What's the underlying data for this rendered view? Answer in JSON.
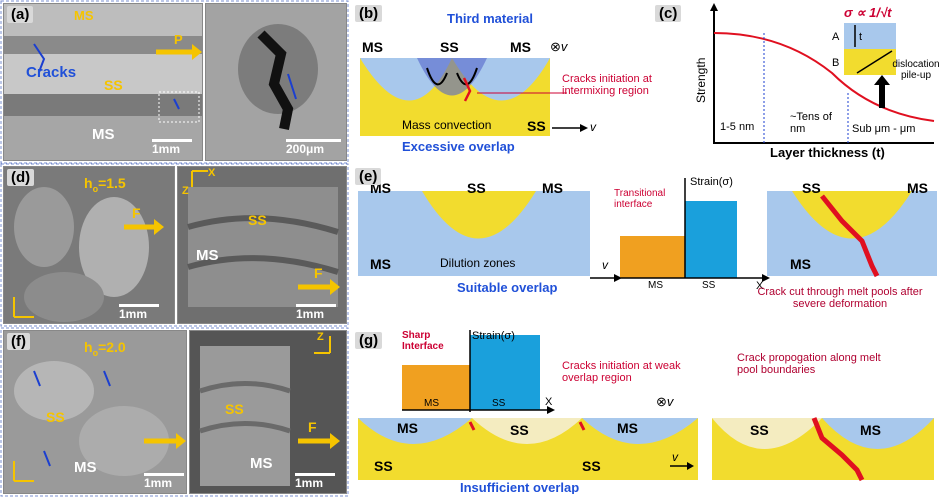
{
  "panels": {
    "a": {
      "tag": "(a)",
      "top_label": "MS",
      "cracks": "Cracks",
      "ss": "SS",
      "ms": "MS",
      "p": "P",
      "scale": "1mm"
    },
    "a2": {
      "scale": "200μm"
    },
    "b": {
      "tag": "(b)",
      "ms_left": "MS",
      "ss": "SS",
      "ms_right": "MS",
      "third_material": "Third material",
      "cracks_initiation": "Cracks initiation at intermixing region",
      "mass_convection": "Mass convection",
      "ss_right": "SS",
      "v": "v",
      "caption": "Excessive overlap"
    },
    "c": {
      "tag": "(c)",
      "ylabel": "Strength",
      "xlabel": "Layer thickness (t)",
      "r1": "1-5 nm",
      "r2": "~Tens of nm",
      "r3": "Sub μm - μm",
      "formula": "σ ∝ 1/√t",
      "a": "A",
      "b": "B",
      "t": "t",
      "pileup": "dislocation pile-up"
    },
    "d": {
      "tag": "(d)",
      "h": "h",
      "h_sub": "o",
      "h_val": "=1.5",
      "f": "F",
      "scale": "1mm"
    },
    "d2": {
      "x": "X",
      "z": "Z",
      "ss": "SS",
      "ms": "MS",
      "f": "F",
      "scale": "1mm"
    },
    "e": {
      "tag": "(e)",
      "ms1": "MS",
      "ss": "SS",
      "ms2": "MS",
      "ms3": "MS",
      "dilution": "Dilution zones",
      "v": "v",
      "caption": "Suitable overlap",
      "transitional": "Transitional interface",
      "strain": "Strain(σ)",
      "bar_ms": "MS",
      "bar_ss": "SS",
      "bar_x": "X",
      "ss2": "SS",
      "ms4": "MS",
      "ms5": "MS",
      "crack_cut": "Crack cut through melt pools after severe deformation"
    },
    "f": {
      "tag": "(f)",
      "h": "h",
      "h_sub": "o",
      "h_val": "=2.0",
      "ss": "SS",
      "ms": "MS",
      "scale": "1mm"
    },
    "f2": {
      "z": "Z",
      "ss": "SS",
      "ms": "MS",
      "f": "F",
      "scale": "1mm"
    },
    "g": {
      "tag": "(g)",
      "sharp": "Sharp Interface",
      "strain": "Strain(σ)",
      "bar_ms": "MS",
      "bar_ss": "SS",
      "bar_x": "X",
      "cracks_initiation": "Cracks initiation at weak overlap region",
      "ms1": "MS",
      "ss": "SS",
      "ms2": "MS",
      "ss_l": "SS",
      "ss_r": "SS",
      "v": "v",
      "caption": "Insufficient overlap",
      "crack_prop": "Crack propogation along melt pool boundaries",
      "ss2": "SS",
      "ms3": "MS"
    }
  },
  "colors": {
    "orange_label": "#f5c400",
    "blue_label": "#2050d8",
    "red_text": "#cc0033",
    "melt_blue": "#a8c8ec",
    "melt_yellow": "#f2dc2e",
    "bar_orange": "#f0a020",
    "bar_blue": "#1aa0dc"
  }
}
